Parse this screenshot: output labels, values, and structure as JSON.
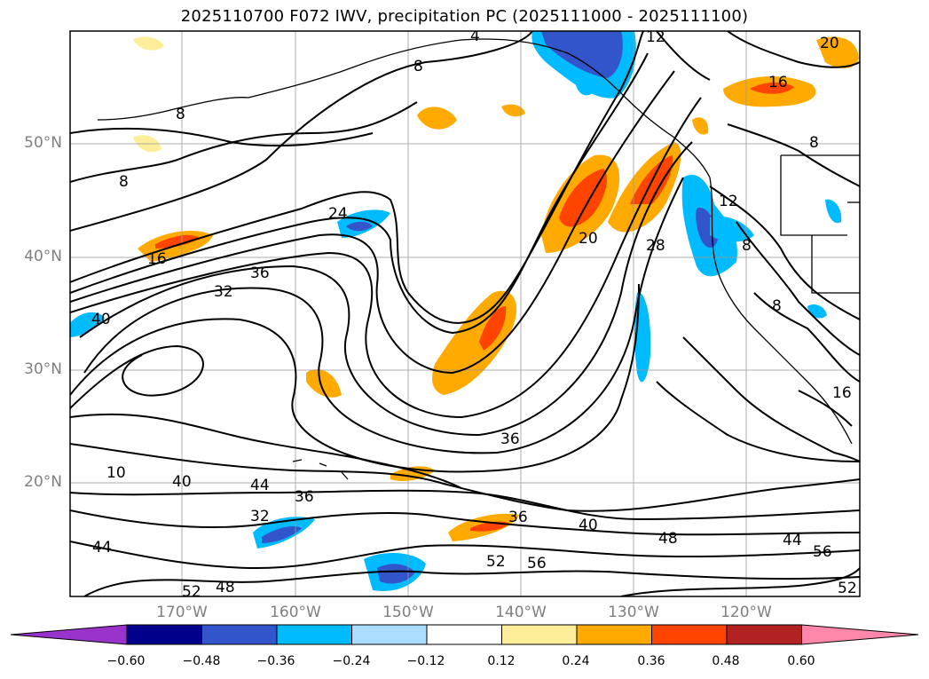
{
  "title": "2025110700 F072 IWV, precipitation PC (2025111000 - 2025111100)",
  "lat_labels": [
    "50°N",
    "40°N",
    "30°N",
    "20°N"
  ],
  "lon_labels": [
    "170°W",
    "160°W",
    "150°W",
    "140°W",
    "130°W",
    "120°W"
  ],
  "colorbar": {
    "tick_labels": [
      "−0.60",
      "−0.48",
      "−0.36",
      "−0.24",
      "−0.12",
      "0.12",
      "0.24",
      "0.36",
      "0.48",
      "0.60"
    ],
    "colors": [
      "#9933cc",
      "#00008b",
      "#3355cc",
      "#00bbff",
      "#aaddff",
      "#ffffff",
      "#ffee99",
      "#ffaa00",
      "#ff4400",
      "#b22222",
      "#ff88aa"
    ]
  },
  "contour_labels": [
    "4",
    "12",
    "20",
    "8",
    "16",
    "8",
    "8",
    "24",
    "36",
    "32",
    "16",
    "40",
    "20",
    "28",
    "12",
    "8",
    "8",
    "8",
    "36",
    "40",
    "44",
    "36",
    "32",
    "36",
    "40",
    "48",
    "44",
    "56",
    "52",
    "56",
    "44",
    "52",
    "48",
    "52",
    "10",
    "16"
  ],
  "legend_note": ""
}
